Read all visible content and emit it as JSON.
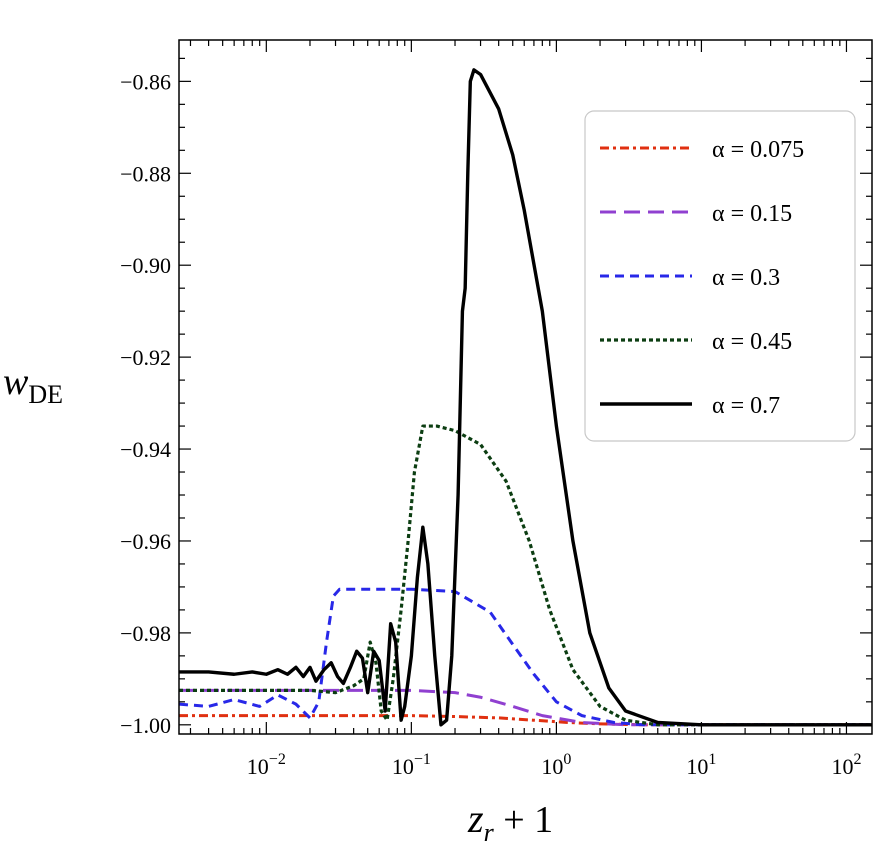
{
  "chart_data": {
    "type": "line",
    "xlabel": "z_r + 1",
    "ylabel": "w_DE",
    "xscale": "log",
    "xlim": [
      0.0025,
      150
    ],
    "ylim": [
      -1.002,
      -0.851
    ],
    "x_ticks": [
      {
        "value": 0.01,
        "base": "10",
        "exp": "−2"
      },
      {
        "value": 0.1,
        "base": "10",
        "exp": "−1"
      },
      {
        "value": 1,
        "base": "10",
        "exp": "0"
      },
      {
        "value": 10,
        "base": "10",
        "exp": "1"
      },
      {
        "value": 100,
        "base": "10",
        "exp": "2"
      }
    ],
    "y_ticks": [
      {
        "value": -0.86,
        "label": "−0.86"
      },
      {
        "value": -0.88,
        "label": "−0.88"
      },
      {
        "value": -0.9,
        "label": "−0.90"
      },
      {
        "value": -0.92,
        "label": "−0.92"
      },
      {
        "value": -0.94,
        "label": "−0.94"
      },
      {
        "value": -0.96,
        "label": "−0.96"
      },
      {
        "value": -0.98,
        "label": "−0.98"
      },
      {
        "value": -1.0,
        "label": "−1.00"
      }
    ],
    "grid": false,
    "legend_position": "top-right",
    "series": [
      {
        "name": "α = 0.075",
        "color": "#e03010",
        "dash": "dashdot",
        "points": [
          [
            0.0025,
            -0.998
          ],
          [
            0.01,
            -0.998
          ],
          [
            0.1,
            -0.998
          ],
          [
            0.2,
            -0.9982
          ],
          [
            0.4,
            -0.9985
          ],
          [
            0.7,
            -0.999
          ],
          [
            1.2,
            -0.9995
          ],
          [
            2,
            -0.9998
          ],
          [
            4,
            -1.0
          ],
          [
            150,
            -1.0
          ]
        ]
      },
      {
        "name": "α = 0.15",
        "color": "#9040d0",
        "dash": "dashed",
        "points": [
          [
            0.0025,
            -0.9925
          ],
          [
            0.01,
            -0.9925
          ],
          [
            0.05,
            -0.9925
          ],
          [
            0.1,
            -0.9925
          ],
          [
            0.2,
            -0.993
          ],
          [
            0.3,
            -0.994
          ],
          [
            0.5,
            -0.996
          ],
          [
            0.8,
            -0.998
          ],
          [
            1.5,
            -0.9995
          ],
          [
            3,
            -1.0
          ],
          [
            150,
            -1.0
          ]
        ]
      },
      {
        "name": "α = 0.3",
        "color": "#2828e8",
        "dash": "shortdash",
        "points": [
          [
            0.0025,
            -0.9955
          ],
          [
            0.004,
            -0.996
          ],
          [
            0.006,
            -0.9945
          ],
          [
            0.009,
            -0.996
          ],
          [
            0.012,
            -0.9935
          ],
          [
            0.016,
            -0.9955
          ],
          [
            0.02,
            -0.9985
          ],
          [
            0.023,
            -0.995
          ],
          [
            0.026,
            -0.982
          ],
          [
            0.029,
            -0.972
          ],
          [
            0.032,
            -0.9705
          ],
          [
            0.05,
            -0.9705
          ],
          [
            0.1,
            -0.9705
          ],
          [
            0.2,
            -0.971
          ],
          [
            0.35,
            -0.9755
          ],
          [
            0.5,
            -0.9825
          ],
          [
            0.7,
            -0.989
          ],
          [
            1.0,
            -0.995
          ],
          [
            1.5,
            -0.998
          ],
          [
            2.5,
            -0.9995
          ],
          [
            4,
            -1.0
          ],
          [
            150,
            -1.0
          ]
        ]
      },
      {
        "name": "α = 0.45",
        "color": "#0c3e12",
        "dash": "dotted",
        "points": [
          [
            0.0025,
            -0.9925
          ],
          [
            0.01,
            -0.9925
          ],
          [
            0.02,
            -0.9925
          ],
          [
            0.03,
            -0.993
          ],
          [
            0.04,
            -0.9915
          ],
          [
            0.047,
            -0.99
          ],
          [
            0.052,
            -0.982
          ],
          [
            0.057,
            -0.9865
          ],
          [
            0.062,
            -0.997
          ],
          [
            0.068,
            -0.999
          ],
          [
            0.075,
            -0.99
          ],
          [
            0.085,
            -0.975
          ],
          [
            0.095,
            -0.96
          ],
          [
            0.105,
            -0.945
          ],
          [
            0.12,
            -0.935
          ],
          [
            0.15,
            -0.935
          ],
          [
            0.2,
            -0.936
          ],
          [
            0.3,
            -0.939
          ],
          [
            0.45,
            -0.947
          ],
          [
            0.65,
            -0.96
          ],
          [
            0.9,
            -0.975
          ],
          [
            1.3,
            -0.988
          ],
          [
            2,
            -0.996
          ],
          [
            3,
            -0.999
          ],
          [
            5,
            -1.0
          ],
          [
            150,
            -1.0
          ]
        ]
      },
      {
        "name": "α = 0.7",
        "color": "#000000",
        "dash": "solid",
        "points": [
          [
            0.0025,
            -0.9885
          ],
          [
            0.004,
            -0.9885
          ],
          [
            0.006,
            -0.989
          ],
          [
            0.008,
            -0.9885
          ],
          [
            0.01,
            -0.989
          ],
          [
            0.012,
            -0.988
          ],
          [
            0.014,
            -0.989
          ],
          [
            0.016,
            -0.9875
          ],
          [
            0.018,
            -0.9895
          ],
          [
            0.02,
            -0.9875
          ],
          [
            0.022,
            -0.9905
          ],
          [
            0.025,
            -0.988
          ],
          [
            0.028,
            -0.9865
          ],
          [
            0.031,
            -0.9895
          ],
          [
            0.034,
            -0.991
          ],
          [
            0.038,
            -0.9875
          ],
          [
            0.042,
            -0.984
          ],
          [
            0.046,
            -0.9855
          ],
          [
            0.05,
            -0.993
          ],
          [
            0.055,
            -0.984
          ],
          [
            0.06,
            -0.986
          ],
          [
            0.066,
            -0.997
          ],
          [
            0.072,
            -0.978
          ],
          [
            0.078,
            -0.982
          ],
          [
            0.085,
            -0.999
          ],
          [
            0.09,
            -0.996
          ],
          [
            0.1,
            -0.985
          ],
          [
            0.11,
            -0.968
          ],
          [
            0.12,
            -0.957
          ],
          [
            0.13,
            -0.965
          ],
          [
            0.145,
            -0.985
          ],
          [
            0.16,
            -1.0
          ],
          [
            0.175,
            -0.999
          ],
          [
            0.19,
            -0.985
          ],
          [
            0.21,
            -0.95
          ],
          [
            0.225,
            -0.91
          ],
          [
            0.235,
            -0.905
          ],
          [
            0.245,
            -0.88
          ],
          [
            0.255,
            -0.86
          ],
          [
            0.27,
            -0.8575
          ],
          [
            0.3,
            -0.8585
          ],
          [
            0.4,
            -0.866
          ],
          [
            0.5,
            -0.876
          ],
          [
            0.6,
            -0.888
          ],
          [
            0.8,
            -0.91
          ],
          [
            1.0,
            -0.935
          ],
          [
            1.3,
            -0.96
          ],
          [
            1.7,
            -0.98
          ],
          [
            2.3,
            -0.992
          ],
          [
            3,
            -0.997
          ],
          [
            5,
            -0.9995
          ],
          [
            10,
            -1.0
          ],
          [
            150,
            -1.0
          ]
        ]
      }
    ]
  }
}
